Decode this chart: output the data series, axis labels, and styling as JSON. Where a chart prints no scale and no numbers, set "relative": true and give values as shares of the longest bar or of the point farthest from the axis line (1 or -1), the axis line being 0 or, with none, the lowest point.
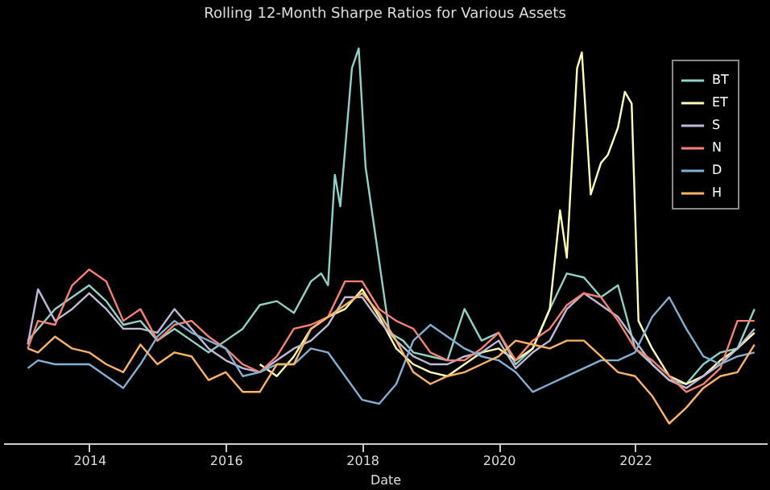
{
  "chart_data": {
    "type": "line",
    "title": "Rolling 12-Month Sharpe Ratios for Various Assets",
    "xlabel": "Date",
    "relative": true,
    "legend": "top right",
    "grid": false,
    "line_style": "solid",
    "x": [
      2013.1,
      2013.25,
      2013.5,
      2013.75,
      2014,
      2014.25,
      2014.5,
      2014.75,
      2015,
      2015.25,
      2015.5,
      2015.75,
      2016,
      2016.25,
      2016.5,
      2016.75,
      2017,
      2017.25,
      2017.5,
      2017.75,
      2018,
      2018.25,
      2018.5,
      2018.75,
      2019,
      2019.25,
      2019.5,
      2019.75,
      2020,
      2020.25,
      2020.5,
      2020.75,
      2021,
      2021.25,
      2021.5,
      2021.75,
      2022,
      2022.25,
      2022.5,
      2022.75,
      2023,
      2023.25,
      2023.5,
      2023.75
    ],
    "xlim": [
      2012.74,
      2023.93
    ],
    "xticks": [
      2014,
      2016,
      2018,
      2020,
      2022
    ],
    "series": [
      {
        "name": "BT",
        "color": "#8dd3c7",
        "x": [
          2013.1,
          2013.25,
          2013.5,
          2013.75,
          2014,
          2014.25,
          2014.5,
          2014.75,
          2015,
          2015.25,
          2015.5,
          2015.75,
          2016,
          2016.25,
          2016.5,
          2016.75,
          2017,
          2017.25,
          2017.4,
          2017.5,
          2017.6,
          2017.68,
          2017.85,
          2017.95,
          2018.05,
          2018.25,
          2018.4,
          2018.6,
          2018.75,
          2019,
          2019.25,
          2019.5,
          2019.75,
          2020,
          2020.25,
          2020.5,
          2020.75,
          2021,
          2021.25,
          2021.5,
          2021.75,
          2022,
          2022.25,
          2022.5,
          2022.75,
          2023,
          2023.25,
          2023.5,
          2023.75
        ],
        "values": [
          0.26,
          0.29,
          0.34,
          0.37,
          0.4,
          0.36,
          0.3,
          0.31,
          0.26,
          0.29,
          0.26,
          0.23,
          0.26,
          0.29,
          0.35,
          0.36,
          0.33,
          0.41,
          0.43,
          0.4,
          0.68,
          0.6,
          0.95,
          1.0,
          0.7,
          0.46,
          0.28,
          0.26,
          0.23,
          0.22,
          0.21,
          0.34,
          0.26,
          0.28,
          0.2,
          0.24,
          0.34,
          0.43,
          0.42,
          0.37,
          0.4,
          0.24,
          0.2,
          0.16,
          0.15,
          0.2,
          0.23,
          0.24,
          0.34
        ]
      },
      {
        "name": "ET",
        "color": "#ffffb3",
        "x": [
          2016.5,
          2016.75,
          2017,
          2017.25,
          2017.5,
          2017.75,
          2018,
          2018.25,
          2018.5,
          2018.75,
          2019,
          2019.25,
          2019.5,
          2019.75,
          2020,
          2020.25,
          2020.5,
          2020.75,
          2020.9,
          2021,
          2021.15,
          2021.22,
          2021.35,
          2021.5,
          2021.6,
          2021.75,
          2021.85,
          2021.95,
          2022.05,
          2022.25,
          2022.5,
          2022.75,
          2023,
          2023.25,
          2023.5,
          2023.75
        ],
        "values": [
          0.2,
          0.17,
          0.22,
          0.29,
          0.32,
          0.34,
          0.39,
          0.32,
          0.24,
          0.2,
          0.18,
          0.17,
          0.2,
          0.23,
          0.24,
          0.21,
          0.24,
          0.34,
          0.59,
          0.47,
          0.95,
          0.99,
          0.63,
          0.71,
          0.73,
          0.8,
          0.89,
          0.86,
          0.31,
          0.24,
          0.17,
          0.15,
          0.17,
          0.21,
          0.24,
          0.28
        ]
      },
      {
        "name": "S",
        "color": "#bebada",
        "values": [
          0.25,
          0.39,
          0.31,
          0.34,
          0.38,
          0.34,
          0.29,
          0.29,
          0.28,
          0.34,
          0.29,
          0.24,
          0.21,
          0.19,
          0.18,
          0.21,
          0.24,
          0.26,
          0.3,
          0.37,
          0.37,
          0.31,
          0.26,
          0.22,
          0.2,
          0.2,
          0.22,
          0.23,
          0.26,
          0.19,
          0.23,
          0.26,
          0.34,
          0.38,
          0.35,
          0.32,
          0.26,
          0.2,
          0.16,
          0.14,
          0.17,
          0.2,
          0.24,
          0.29
        ]
      },
      {
        "name": "N",
        "color": "#fb8072",
        "values": [
          0.24,
          0.31,
          0.3,
          0.4,
          0.44,
          0.41,
          0.31,
          0.34,
          0.26,
          0.3,
          0.31,
          0.27,
          0.24,
          0.2,
          0.18,
          0.22,
          0.29,
          0.3,
          0.32,
          0.41,
          0.41,
          0.34,
          0.31,
          0.29,
          0.23,
          0.21,
          0.21,
          0.24,
          0.28,
          0.21,
          0.26,
          0.29,
          0.35,
          0.38,
          0.37,
          0.31,
          0.24,
          0.21,
          0.17,
          0.13,
          0.15,
          0.19,
          0.31,
          0.31
        ]
      },
      {
        "name": "D",
        "color": "#80b1d3",
        "values": [
          0.19,
          0.21,
          0.2,
          0.2,
          0.2,
          0.17,
          0.14,
          0.2,
          0.27,
          0.31,
          0.28,
          0.26,
          0.24,
          0.17,
          0.18,
          0.2,
          0.2,
          0.24,
          0.23,
          0.17,
          0.11,
          0.1,
          0.15,
          0.26,
          0.3,
          0.27,
          0.24,
          0.22,
          0.21,
          0.18,
          0.13,
          0.15,
          0.17,
          0.19,
          0.21,
          0.21,
          0.23,
          0.32,
          0.37,
          0.29,
          0.22,
          0.2,
          0.22,
          0.23
        ]
      },
      {
        "name": "H",
        "color": "#fdb462",
        "values": [
          0.24,
          0.23,
          0.27,
          0.24,
          0.23,
          0.2,
          0.18,
          0.25,
          0.2,
          0.23,
          0.22,
          0.16,
          0.18,
          0.13,
          0.13,
          0.2,
          0.2,
          0.29,
          0.32,
          0.35,
          0.38,
          0.33,
          0.26,
          0.18,
          0.15,
          0.17,
          0.18,
          0.2,
          0.22,
          0.26,
          0.25,
          0.24,
          0.26,
          0.26,
          0.22,
          0.18,
          0.17,
          0.12,
          0.05,
          0.09,
          0.14,
          0.17,
          0.18,
          0.25
        ]
      }
    ]
  }
}
